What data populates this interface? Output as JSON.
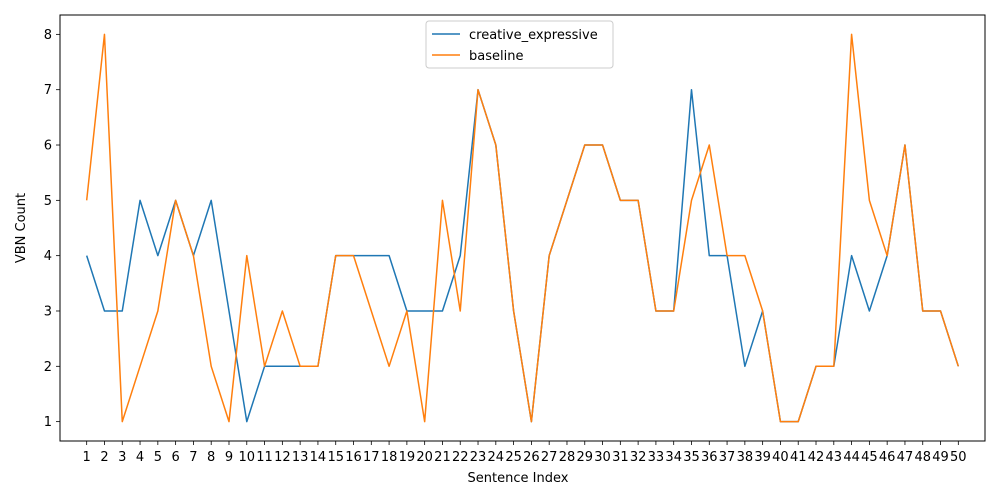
{
  "chart_data": {
    "type": "line",
    "title": "",
    "xlabel": "Sentence Index",
    "ylabel": "VBN Count",
    "x": [
      1,
      2,
      3,
      4,
      5,
      6,
      7,
      8,
      9,
      10,
      11,
      12,
      13,
      14,
      15,
      16,
      17,
      18,
      19,
      20,
      21,
      22,
      23,
      24,
      25,
      26,
      27,
      28,
      29,
      30,
      31,
      32,
      33,
      34,
      35,
      36,
      37,
      38,
      39,
      40,
      41,
      42,
      43,
      44,
      45,
      46,
      47,
      48,
      49,
      50
    ],
    "xlim": [
      -0.5,
      51.5
    ],
    "ylim": [
      0.65,
      8.35
    ],
    "yticks": [
      1,
      2,
      3,
      4,
      5,
      6,
      7,
      8
    ],
    "grid": false,
    "legend_position": "top-center",
    "series": [
      {
        "name": "creative_expressive",
        "color": "#1f77b4",
        "values": [
          4,
          3,
          3,
          5,
          4,
          5,
          4,
          5,
          3,
          1,
          2,
          2,
          2,
          2,
          4,
          4,
          4,
          4,
          3,
          3,
          3,
          4,
          7,
          6,
          3,
          1,
          4,
          5,
          6,
          6,
          5,
          5,
          3,
          3,
          7,
          4,
          4,
          2,
          3,
          1,
          1,
          2,
          2,
          4,
          3,
          4,
          6,
          3,
          3,
          2
        ]
      },
      {
        "name": "baseline",
        "color": "#ff7f0e",
        "values": [
          5,
          8,
          1,
          2,
          3,
          5,
          4,
          2,
          1,
          4,
          2,
          3,
          2,
          2,
          4,
          4,
          3,
          2,
          3,
          1,
          5,
          3,
          7,
          6,
          3,
          1,
          4,
          5,
          6,
          6,
          5,
          5,
          3,
          3,
          5,
          6,
          4,
          4,
          3,
          1,
          1,
          2,
          2,
          8,
          5,
          4,
          6,
          3,
          3,
          2
        ]
      }
    ]
  }
}
